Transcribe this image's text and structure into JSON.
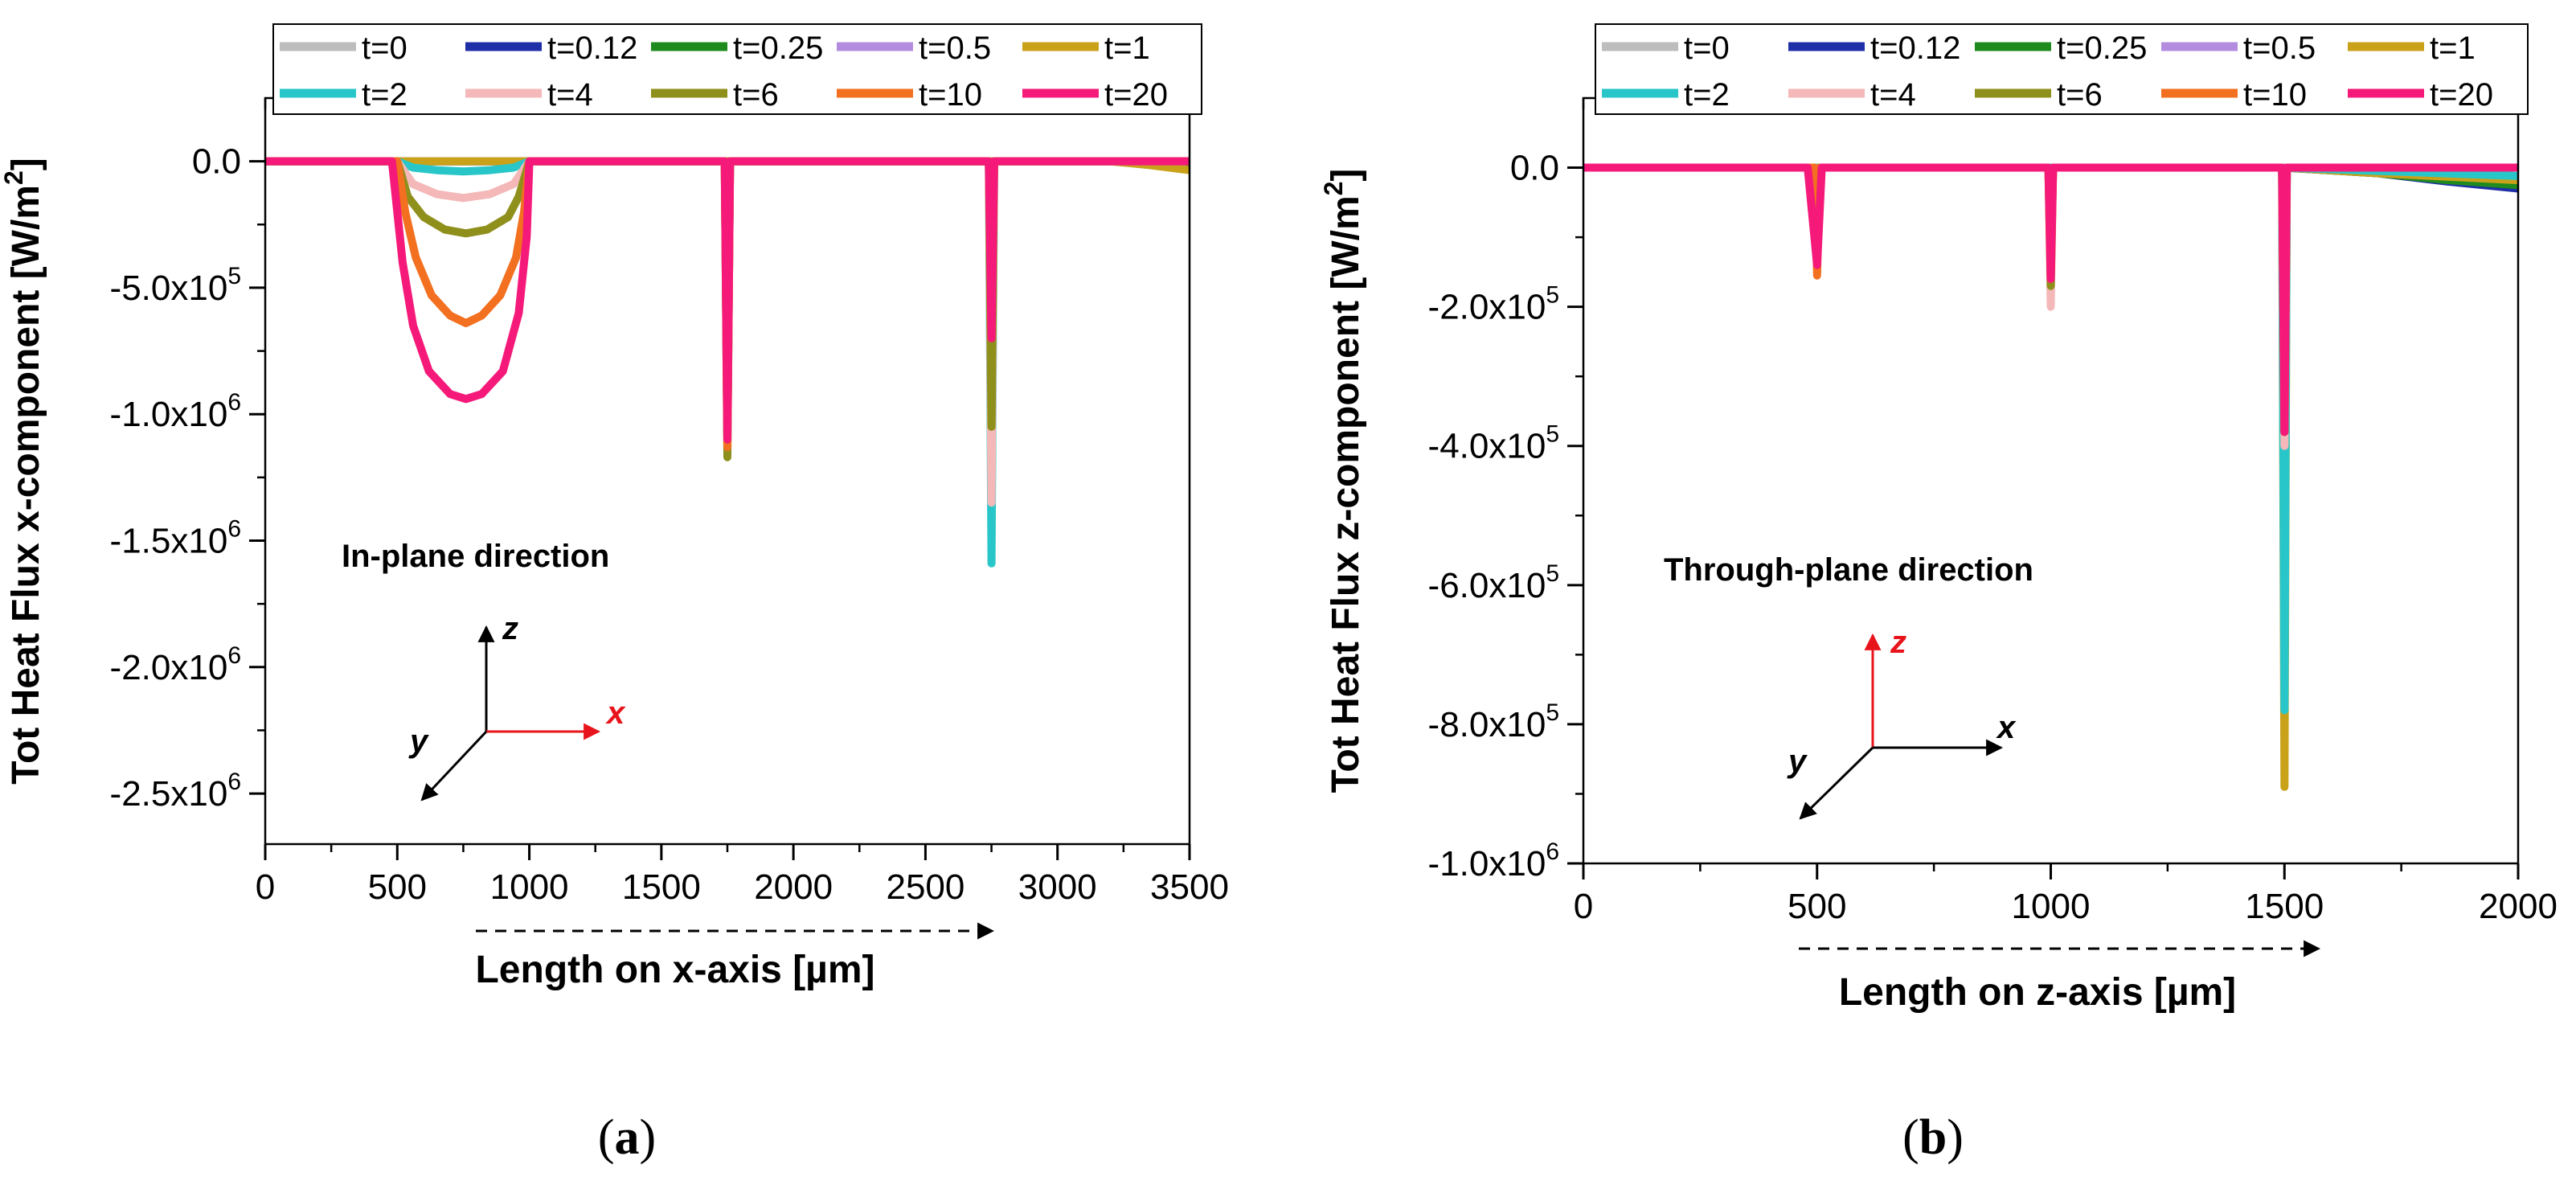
{
  "figure": {
    "panel_labels": [
      "(a)",
      "(b)"
    ]
  },
  "legend": {
    "entries": [
      {
        "label": "t=0",
        "color": "#bdbdbd"
      },
      {
        "label": "t=0.12",
        "color": "#1f2fa8"
      },
      {
        "label": "t=0.25",
        "color": "#1f8b1f"
      },
      {
        "label": "t=0.5",
        "color": "#b38ce0"
      },
      {
        "label": "t=1",
        "color": "#c9a21a"
      },
      {
        "label": "t=2",
        "color": "#29c6c9"
      },
      {
        "label": "t=4",
        "color": "#f4b8b8"
      },
      {
        "label": "t=6",
        "color": "#8f8f1c"
      },
      {
        "label": "t=10",
        "color": "#f2701f"
      },
      {
        "label": "t=20",
        "color": "#f5197a"
      }
    ]
  },
  "chart_data": [
    {
      "type": "line",
      "panel": "(a)",
      "annotation": "In-plane direction",
      "xlabel": "Length on x-axis [µm]",
      "ylabel": "Tot Heat Flux x-component [W/m²]",
      "xlim": [
        0,
        3500
      ],
      "ylim": [
        -2700000,
        250000
      ],
      "xticks": [
        0,
        500,
        1000,
        1500,
        2000,
        2500,
        3000,
        3500
      ],
      "xticklabels": [
        "0",
        "500",
        "1000",
        "1500",
        "2000",
        "2500",
        "3000",
        "3500"
      ],
      "yticks": [
        0,
        -500000,
        -1000000,
        -1500000,
        -2000000,
        -2500000
      ],
      "yticklabels": [
        {
          "mant": "0.0",
          "exp": ""
        },
        {
          "mant": "-5.0x10",
          "exp": "5"
        },
        {
          "mant": "-1.0x10",
          "exp": "6"
        },
        {
          "mant": "-1.5x10",
          "exp": "6"
        },
        {
          "mant": "-2.0x10",
          "exp": "6"
        },
        {
          "mant": "-2.5x10",
          "exp": "6"
        }
      ],
      "axes_glyph": {
        "labels": [
          "z",
          "x",
          "y"
        ],
        "highlight": "x",
        "highlight_color": "#e8141b"
      },
      "series": [
        {
          "name": "t=0",
          "x": [
            0,
            3500
          ],
          "y": [
            0,
            0
          ]
        },
        {
          "name": "t=0.12",
          "x": [
            0,
            3200,
            3350,
            3500
          ],
          "y": [
            0,
            0,
            -10000,
            -20000
          ]
        },
        {
          "name": "t=0.25",
          "x": [
            0,
            3200,
            3350,
            3500
          ],
          "y": [
            0,
            0,
            -12000,
            -25000
          ]
        },
        {
          "name": "t=0.5",
          "x": [
            0,
            3500
          ],
          "y": [
            0,
            0
          ]
        },
        {
          "name": "t=1",
          "x": [
            0,
            3200,
            3350,
            3500
          ],
          "y": [
            0,
            0,
            -15000,
            -35000
          ]
        },
        {
          "name": "t=2",
          "x": [
            0,
            500,
            560,
            650,
            750,
            850,
            940,
            1000,
            1740,
            1750,
            1760,
            2740,
            2750,
            2760,
            3500
          ],
          "y": [
            0,
            0,
            -25000,
            -35000,
            -40000,
            -35000,
            -25000,
            0,
            0,
            -1100000,
            0,
            0,
            -1590000,
            0,
            0
          ]
        },
        {
          "name": "t=4",
          "x": [
            0,
            500,
            560,
            650,
            750,
            850,
            940,
            1000,
            1740,
            1750,
            1760,
            2740,
            2750,
            2760,
            3500
          ],
          "y": [
            0,
            0,
            -90000,
            -130000,
            -145000,
            -130000,
            -90000,
            0,
            0,
            -1120000,
            0,
            0,
            -1350000,
            0,
            0
          ]
        },
        {
          "name": "t=6",
          "x": [
            0,
            500,
            540,
            600,
            680,
            760,
            840,
            920,
            960,
            1000,
            1740,
            1750,
            1760,
            2740,
            2750,
            2760,
            3500
          ],
          "y": [
            0,
            0,
            -140000,
            -220000,
            -270000,
            -285000,
            -270000,
            -220000,
            -140000,
            0,
            0,
            -1170000,
            0,
            0,
            -1050000,
            0,
            0
          ]
        },
        {
          "name": "t=10",
          "x": [
            0,
            500,
            530,
            570,
            630,
            700,
            760,
            820,
            890,
            950,
            980,
            1000,
            1740,
            1750,
            1760,
            2740,
            2750,
            2760,
            3500
          ],
          "y": [
            0,
            0,
            -200000,
            -380000,
            -530000,
            -610000,
            -640000,
            -610000,
            -530000,
            -380000,
            -200000,
            0,
            0,
            -1130000,
            0,
            0,
            -700000,
            0,
            0
          ]
        },
        {
          "name": "t=20",
          "x": [
            0,
            480,
            500,
            520,
            560,
            620,
            700,
            760,
            820,
            900,
            960,
            990,
            1000,
            1740,
            1750,
            1760,
            2740,
            2750,
            2760,
            3500
          ],
          "y": [
            0,
            0,
            -200000,
            -400000,
            -650000,
            -830000,
            -920000,
            -940000,
            -920000,
            -830000,
            -600000,
            -300000,
            0,
            0,
            -1100000,
            0,
            0,
            -700000,
            0,
            0
          ]
        }
      ]
    },
    {
      "type": "line",
      "panel": "(b)",
      "annotation": "Through-plane direction",
      "xlabel": "Length on z-axis [µm]",
      "ylabel": "Tot Heat Flux z-component [W/m²]",
      "xlim": [
        0,
        2000
      ],
      "ylim": [
        -1000000,
        100000
      ],
      "xticks": [
        0,
        500,
        1000,
        1500,
        2000
      ],
      "xticklabels": [
        "0",
        "500",
        "1000",
        "1500",
        "2000"
      ],
      "yticks": [
        0,
        -200000,
        -400000,
        -600000,
        -800000,
        -1000000
      ],
      "yticklabels": [
        {
          "mant": "0.0",
          "exp": ""
        },
        {
          "mant": "-2.0x10",
          "exp": "5"
        },
        {
          "mant": "-4.0x10",
          "exp": "5"
        },
        {
          "mant": "-6.0x10",
          "exp": "5"
        },
        {
          "mant": "-8.0x10",
          "exp": "5"
        },
        {
          "mant": "-1.0x10",
          "exp": "6"
        }
      ],
      "axes_glyph": {
        "labels": [
          "z",
          "x",
          "y"
        ],
        "highlight": "z",
        "highlight_color": "#e8141b"
      },
      "series": [
        {
          "name": "t=0",
          "x": [
            0,
            2000
          ],
          "y": [
            0,
            0
          ]
        },
        {
          "name": "t=0.12",
          "x": [
            0,
            1500,
            1700,
            1850,
            2000
          ],
          "y": [
            0,
            0,
            -8000,
            -20000,
            -30000
          ]
        },
        {
          "name": "t=0.25",
          "x": [
            0,
            1500,
            1700,
            1850,
            2000
          ],
          "y": [
            0,
            0,
            -8000,
            -18000,
            -25000
          ]
        },
        {
          "name": "t=0.5",
          "x": [
            0,
            2000
          ],
          "y": [
            0,
            0
          ]
        },
        {
          "name": "t=1",
          "x": [
            0,
            1495,
            1500,
            1505,
            1700,
            2000
          ],
          "y": [
            0,
            0,
            -890000,
            0,
            -8000,
            -18000
          ]
        },
        {
          "name": "t=2",
          "x": [
            0,
            1495,
            1500,
            1505,
            2000
          ],
          "y": [
            0,
            0,
            -780000,
            0,
            -12000
          ]
        },
        {
          "name": "t=4",
          "x": [
            0,
            495,
            500,
            505,
            995,
            1000,
            1005,
            1495,
            1500,
            1505,
            2000
          ],
          "y": [
            0,
            0,
            -130000,
            0,
            0,
            -200000,
            0,
            0,
            -400000,
            0,
            0
          ]
        },
        {
          "name": "t=6",
          "x": [
            0,
            495,
            500,
            505,
            995,
            1000,
            1005,
            1495,
            1500,
            1505,
            2000
          ],
          "y": [
            0,
            0,
            -140000,
            0,
            0,
            -170000,
            0,
            0,
            -380000,
            0,
            0
          ]
        },
        {
          "name": "t=10",
          "x": [
            0,
            495,
            500,
            505,
            995,
            1000,
            1005,
            1495,
            1500,
            1505,
            2000
          ],
          "y": [
            0,
            0,
            -155000,
            0,
            0,
            -160000,
            0,
            0,
            -380000,
            0,
            0
          ]
        },
        {
          "name": "t=20",
          "x": [
            0,
            480,
            500,
            510,
            995,
            1000,
            1005,
            1495,
            1500,
            1505,
            2000
          ],
          "y": [
            0,
            0,
            -140000,
            0,
            0,
            -160000,
            0,
            0,
            -380000,
            0,
            0
          ]
        }
      ]
    }
  ]
}
